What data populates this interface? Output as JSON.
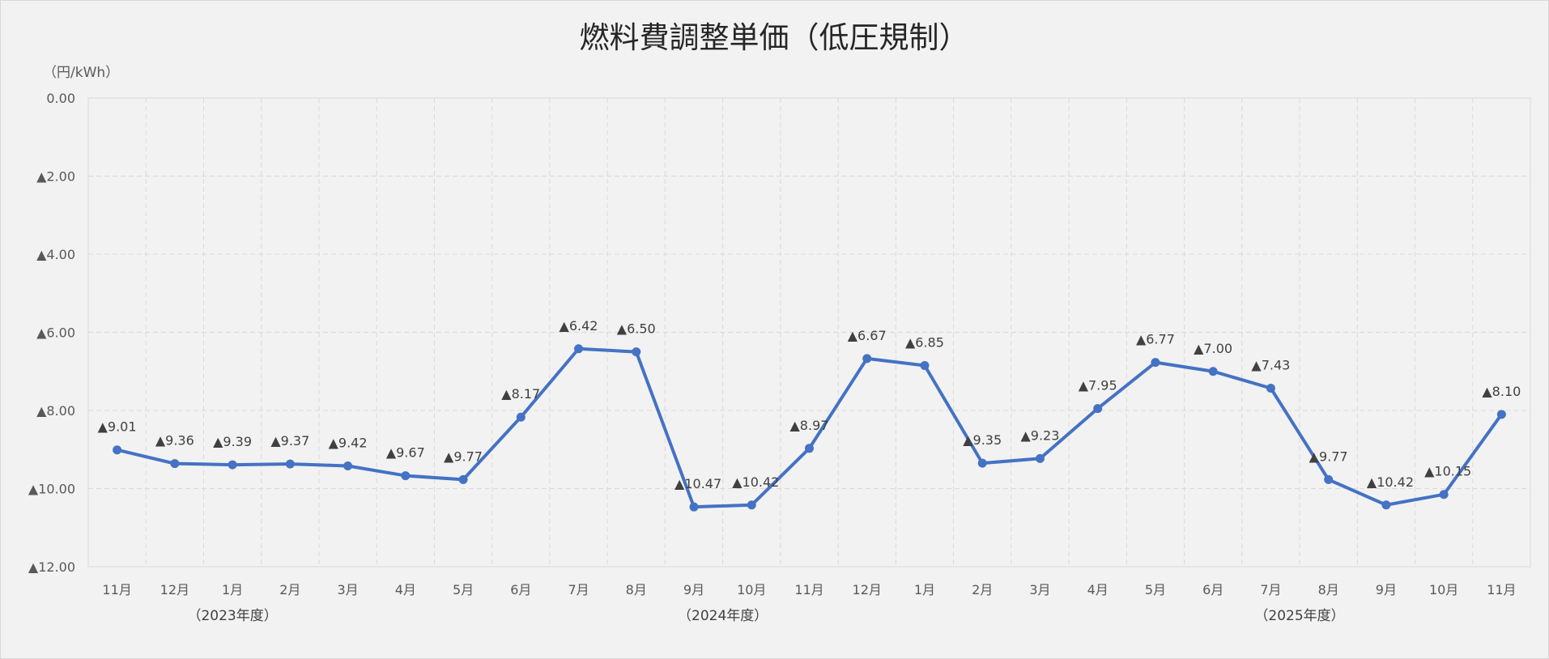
{
  "chart_data": {
    "type": "line",
    "title": "燃料費調整単価（低圧規制）",
    "unit_label": "（円/kWh）",
    "y_axis": {
      "min": 0,
      "max": 12,
      "reversed": true,
      "tick_values": [
        0,
        2,
        4,
        6,
        8,
        10,
        12
      ],
      "tick_labels": [
        "0.00",
        "▲2.00",
        "▲4.00",
        "▲6.00",
        "▲8.00",
        "▲10.00",
        "▲12.00"
      ]
    },
    "categories": [
      "11月",
      "12月",
      "1月",
      "2月",
      "3月",
      "4月",
      "5月",
      "6月",
      "7月",
      "8月",
      "9月",
      "10月",
      "11月",
      "12月",
      "1月",
      "2月",
      "3月",
      "4月",
      "5月",
      "6月",
      "7月",
      "8月",
      "9月",
      "10月",
      "11月"
    ],
    "series": [
      {
        "values": [
          9.01,
          9.36,
          9.39,
          9.37,
          9.42,
          9.67,
          9.77,
          8.17,
          6.42,
          6.5,
          10.47,
          10.42,
          8.97,
          6.67,
          6.85,
          9.35,
          9.23,
          7.95,
          6.77,
          7.0,
          7.43,
          9.77,
          10.42,
          10.15,
          8.1
        ],
        "labels": [
          "▲9.01",
          "▲9.36",
          "▲9.39",
          "▲9.37",
          "▲9.42",
          "▲9.67",
          "▲9.77",
          "▲8.17",
          "▲6.42",
          "▲6.50",
          "▲10.47",
          "▲10.42",
          "▲8.97",
          "▲6.67",
          "▲6.85",
          "▲9.35",
          "▲9.23",
          "▲7.95",
          "▲6.77",
          "▲7.00",
          "▲7.43",
          "▲9.77",
          "▲10.42",
          "▲10.15",
          "▲8.10"
        ],
        "color": "#4472c4"
      }
    ],
    "fiscal_year_labels": [
      {
        "text": "（2023年度）",
        "category_index": 2
      },
      {
        "text": "（2024年度）",
        "category_index": 10.5
      },
      {
        "text": "（2025年度）",
        "category_index": 20.5
      }
    ],
    "grid": true,
    "legend": "none",
    "grid_color": "#d9d9d9"
  }
}
